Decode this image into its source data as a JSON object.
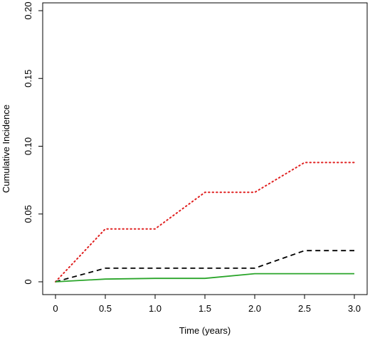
{
  "chart_data": {
    "type": "line",
    "xlabel": "Time (years)",
    "ylabel": "Cumulative Incidence",
    "xlim": [
      0,
      3.0
    ],
    "ylim": [
      0,
      0.2
    ],
    "x_ticks": [
      "0",
      "0.5",
      "1.0",
      "1.5",
      "2.0",
      "2.5",
      "3.0"
    ],
    "y_ticks": [
      "0",
      "0.05",
      "0.10",
      "0.15",
      "0.20"
    ],
    "grid": false,
    "series": [
      {
        "color": "#e02020",
        "style": "dotted",
        "x": [
          0,
          0.5,
          1.0,
          1.5,
          2.0,
          2.5,
          3.0
        ],
        "y": [
          0,
          0.039,
          0.039,
          0.066,
          0.066,
          0.088,
          0.088
        ]
      },
      {
        "color": "#000000",
        "style": "dashed",
        "x": [
          0,
          0.5,
          1.0,
          1.5,
          2.0,
          2.5,
          3.0
        ],
        "y": [
          0,
          0.01,
          0.01,
          0.01,
          0.01,
          0.023,
          0.023
        ]
      },
      {
        "color": "#2aa52a",
        "style": "solid",
        "x": [
          0,
          0.5,
          1.0,
          1.5,
          2.0,
          2.5,
          3.0
        ],
        "y": [
          0,
          0.002,
          0.0025,
          0.0025,
          0.006,
          0.006,
          0.006
        ]
      }
    ]
  }
}
